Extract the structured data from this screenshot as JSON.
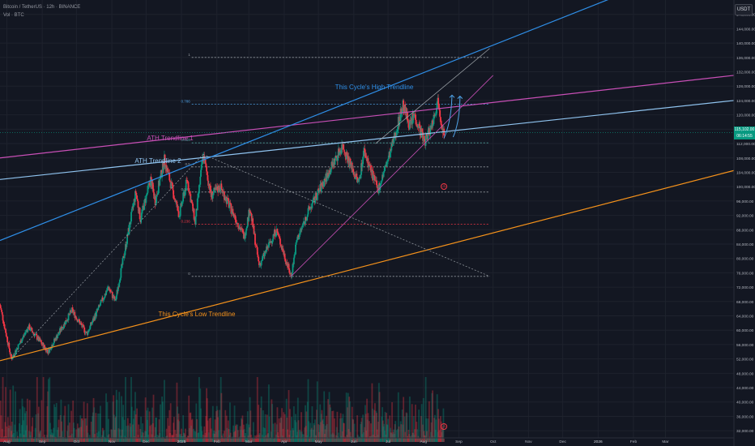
{
  "header": {
    "symbol_line": "Bitcoin / TetherUS · 12h · BINANCE",
    "volume_line": "Vol · BTC"
  },
  "currency_button": "USDT",
  "price_tags": {
    "last_price": "115,102.00",
    "countdown": "06:14:55"
  },
  "colors": {
    "background": "#131722",
    "up": "#089981",
    "down": "#f23645",
    "high_trend": "#2f8fe8",
    "ath_trend_1": "#c84fb6",
    "ath_trend_2": "#90c4f0",
    "low_trend": "#f5921b",
    "fib_lines": "#8f9199"
  },
  "chart_data": {
    "type": "candlestick",
    "symbol": "Bitcoin / TetherUS",
    "timeframe": "12h",
    "exchange": "BINANCE",
    "y_ticks": [
      148000,
      144000,
      140000,
      136000,
      132000,
      128000,
      124000,
      120000,
      116000,
      112000,
      108000,
      104000,
      100000,
      96000,
      92000,
      88000,
      84000,
      80000,
      76000,
      72000,
      68000,
      64000,
      60000,
      56000,
      52000,
      48000,
      44000,
      40000,
      36000,
      32000
    ],
    "y_tick_labels": [
      "148,000.00",
      "144,000.00",
      "140,000.00",
      "136,000.00",
      "132,000.00",
      "128,000.00",
      "124,000.00",
      "120,000.00",
      "116,000.00",
      "112,000.00",
      "108,000.00",
      "104,000.00",
      "100,000.00",
      "96,000.00",
      "92,000.00",
      "88,000.00",
      "84,000.00",
      "80,000.00",
      "76,000.00",
      "72,000.00",
      "68,000.00",
      "64,000.00",
      "60,000.00",
      "56,000.00",
      "52,000.00",
      "48,000.00",
      "44,000.00",
      "40,000.00",
      "36,000.00",
      "32,000.00"
    ],
    "ylim": [
      30000,
      152000
    ],
    "x_labels": [
      "Aug",
      "Sep",
      "Oct",
      "Nov",
      "Dec",
      "2025",
      "Feb",
      "Mar",
      "Apr",
      "May",
      "Jun",
      "Jul",
      "Aug",
      "Sep",
      "Oct",
      "Nov",
      "Dec",
      "2026",
      "Feb",
      "Mar"
    ],
    "x_label_positions": [
      "2024-08-01",
      "2024-09-01",
      "2024-10-01",
      "2024-11-01",
      "2024-12-01",
      "2025-01-01",
      "2025-02-01",
      "2025-03-01",
      "2025-04-01",
      "2025-05-01",
      "2025-06-01",
      "2025-07-01",
      "2025-08-01",
      "2025-09-01",
      "2025-10-01",
      "2025-11-01",
      "2025-12-01",
      "2026-01-01",
      "2026-02-01",
      "2026-03-01"
    ],
    "xlim": [
      "2024-07-26",
      "2026-04-30"
    ],
    "price_path": [
      [
        "2024-07-26",
        67000
      ],
      [
        "2024-08-05",
        52000
      ],
      [
        "2024-08-20",
        61000
      ],
      [
        "2024-09-06",
        54000
      ],
      [
        "2024-09-27",
        65500
      ],
      [
        "2024-10-10",
        59000
      ],
      [
        "2024-10-29",
        72000
      ],
      [
        "2024-11-04",
        68000
      ],
      [
        "2024-11-22",
        98500
      ],
      [
        "2024-11-26",
        91000
      ],
      [
        "2024-12-05",
        102000
      ],
      [
        "2024-12-09",
        96000
      ],
      [
        "2024-12-17",
        107500
      ],
      [
        "2024-12-30",
        92000
      ],
      [
        "2025-01-06",
        102000
      ],
      [
        "2025-01-13",
        90000
      ],
      [
        "2025-01-20",
        109000
      ],
      [
        "2025-01-27",
        97500
      ],
      [
        "2025-02-04",
        100000
      ],
      [
        "2025-02-25",
        86000
      ],
      [
        "2025-03-02",
        94000
      ],
      [
        "2025-03-10",
        78000
      ],
      [
        "2025-03-25",
        88000
      ],
      [
        "2025-04-07",
        75000
      ],
      [
        "2025-04-12",
        85000
      ],
      [
        "2025-04-22",
        93000
      ],
      [
        "2025-05-10",
        104000
      ],
      [
        "2025-05-22",
        111500
      ],
      [
        "2025-06-05",
        101000
      ],
      [
        "2025-06-10",
        110000
      ],
      [
        "2025-06-22",
        99000
      ],
      [
        "2025-07-03",
        109500
      ],
      [
        "2025-07-14",
        122800
      ],
      [
        "2025-07-20",
        117000
      ],
      [
        "2025-07-24",
        120000
      ],
      [
        "2025-08-02",
        112500
      ],
      [
        "2025-08-08",
        117000
      ],
      [
        "2025-08-14",
        124400
      ],
      [
        "2025-08-17",
        117500
      ],
      [
        "2025-08-19",
        115100
      ]
    ],
    "current_price": 115102.0,
    "annotations": [
      {
        "label": "ATH Trendline 1",
        "color": "#c84fb6"
      },
      {
        "label": "ATH Trendline 2",
        "color": "#90c4f0"
      },
      {
        "label": "This Cycle's High Trendline",
        "color": "#2f8fe8"
      },
      {
        "label": "This Cycle's Low Trendline",
        "color": "#f5921b"
      }
    ],
    "trendlines": [
      {
        "name": "ATH Trendline 1",
        "color": "#c84fb6",
        "p1": [
          "2024-07-26",
          108000
        ],
        "p2": [
          "2026-04-30",
          131000
        ]
      },
      {
        "name": "ATH Trendline 2",
        "color": "#90c4f0",
        "p1": [
          "2024-07-26",
          102000
        ],
        "p2": [
          "2026-04-30",
          124000
        ]
      },
      {
        "name": "This Cycle's High Trendline",
        "color": "#2f8fe8",
        "p1": [
          "2024-07-26",
          85000
        ],
        "p2": [
          "2026-04-30",
          166000
        ]
      },
      {
        "name": "This Cycle's Low Trendline",
        "color": "#f5921b",
        "p1": [
          "2024-07-26",
          51500
        ],
        "p2": [
          "2026-04-30",
          104500
        ]
      }
    ],
    "channel_lines": [
      {
        "color": "#c84fb6",
        "p1": [
          "2025-04-07",
          75000
        ],
        "p2": [
          "2025-10-01",
          131000
        ]
      },
      {
        "color": "#9aa0a6",
        "p1": [
          "2025-06-20",
          112000
        ],
        "p2": [
          "2025-09-28",
          138500
        ]
      }
    ],
    "projection_lines": [
      {
        "color": "#9aa0a6",
        "p1": [
          "2024-08-05",
          52000
        ],
        "p2": [
          "2025-01-20",
          109000
        ]
      },
      {
        "color": "#9aa0a6",
        "p1": [
          "2025-01-20",
          109000
        ],
        "p2": [
          "2025-09-28",
          75000
        ]
      }
    ],
    "fib_retracement": {
      "from": "2025-01-10",
      "to": "2025-09-28",
      "levels": [
        {
          "label": "1",
          "price": 136000,
          "color": "#9aa0a6"
        },
        {
          "label": "0.786",
          "price": 123000,
          "color": "#4fa3e8"
        },
        {
          "label": "0.618",
          "price": 112200,
          "color": "#4fa3a0"
        },
        {
          "label": "0.5",
          "price": 105500,
          "color": "#9aa0a6"
        },
        {
          "label": "0.382",
          "price": 98500,
          "color": "#9aa0a6"
        },
        {
          "label": "0.236",
          "price": 89500,
          "color": "#f23645"
        },
        {
          "label": "0",
          "price": 75000,
          "color": "#9aa0a6"
        }
      ]
    },
    "forecast_arrows": [
      {
        "color": "#4fa3e8",
        "from": [
          "2025-08-19",
          113500
        ],
        "to": [
          "2025-08-26",
          125500
        ]
      },
      {
        "color": "#4fa3e8",
        "from": [
          "2025-08-27",
          113800
        ],
        "to": [
          "2025-09-02",
          125200
        ]
      }
    ],
    "grid": true,
    "legend": "none"
  }
}
